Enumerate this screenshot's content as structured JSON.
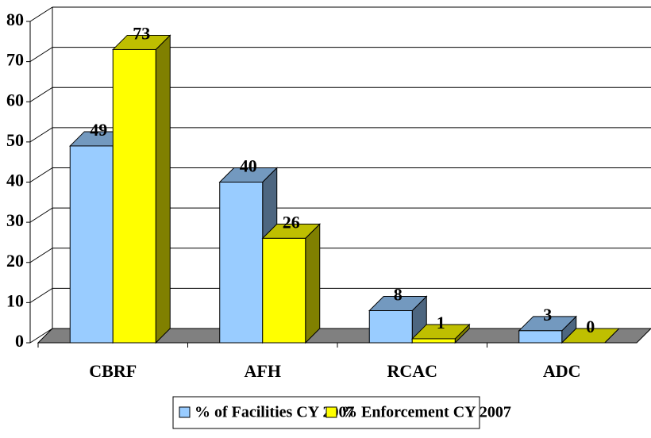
{
  "chart_data": {
    "type": "bar3d",
    "categories": [
      "CBRF",
      "AFH",
      "RCAC",
      "ADC"
    ],
    "series": [
      {
        "name": "% of Facilities CY 2007",
        "color": "#99ccff",
        "values": [
          49,
          40,
          8,
          3
        ]
      },
      {
        "name": "% Enforcement CY 2007",
        "color": "#ffff00",
        "values": [
          73,
          26,
          1,
          0
        ]
      }
    ],
    "ylim": [
      0,
      80
    ],
    "yticks": [
      0,
      10,
      20,
      30,
      40,
      50,
      60,
      70,
      80
    ],
    "grid": true,
    "legend": "bottom"
  }
}
